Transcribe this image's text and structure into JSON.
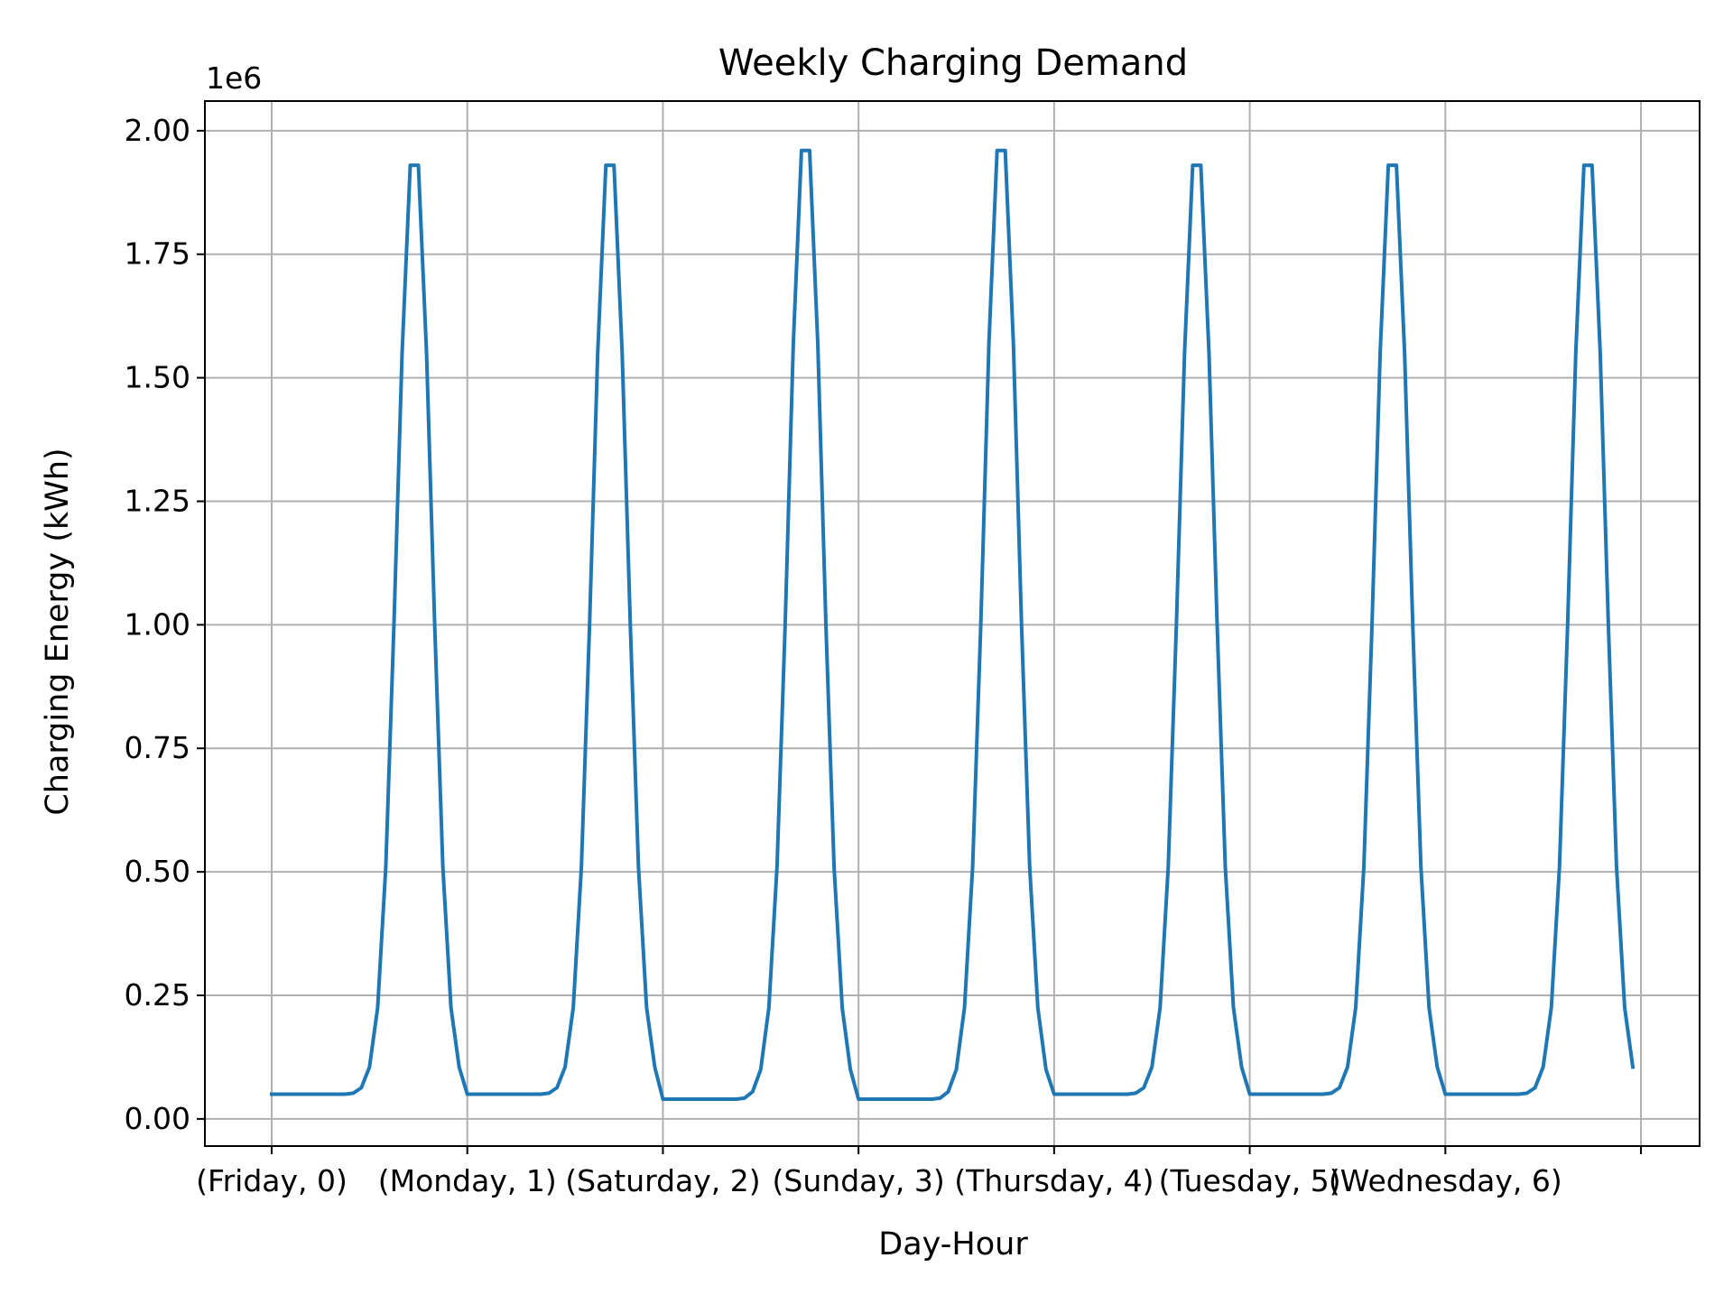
{
  "chart_data": {
    "type": "line",
    "title": "Weekly Charging Demand",
    "xlabel": "Day-Hour",
    "ylabel": "Charging Energy (kWh)",
    "y_offset_text": "1e6",
    "ylim": [
      -0.055,
      2.06
    ],
    "y_ticks": [
      0.0,
      0.25,
      0.5,
      0.75,
      1.0,
      1.25,
      1.5,
      1.75,
      2.0
    ],
    "y_tick_labels": [
      "0.00",
      "0.25",
      "0.50",
      "0.75",
      "1.00",
      "1.25",
      "1.50",
      "1.75",
      "2.00"
    ],
    "x_tick_labels": [
      "(Friday, 0)",
      "(Monday, 1)",
      "(Saturday, 2)",
      "(Sunday, 3)",
      "(Thursday, 4)",
      "(Tuesday, 5)",
      "(Wednesday, 6)"
    ],
    "grid": true,
    "legend": "none",
    "line_color": "#1f77b4",
    "series": [
      {
        "values": [
          0.05,
          0.05,
          0.05,
          0.05,
          0.05,
          0.05,
          0.05,
          0.05,
          0.05,
          0.05,
          0.052,
          0.063,
          0.105,
          0.225,
          0.51,
          1.0,
          1.55,
          1.93,
          1.93,
          1.55,
          1.0,
          0.51,
          0.225,
          0.105,
          0.05,
          0.05,
          0.05,
          0.05,
          0.05,
          0.05,
          0.05,
          0.05,
          0.05,
          0.05,
          0.052,
          0.063,
          0.105,
          0.225,
          0.51,
          1.0,
          1.55,
          1.93,
          1.93,
          1.55,
          1.0,
          0.51,
          0.225,
          0.105,
          0.04,
          0.04,
          0.04,
          0.04,
          0.04,
          0.04,
          0.04,
          0.04,
          0.04,
          0.04,
          0.042,
          0.055,
          0.1,
          0.225,
          0.51,
          1.0,
          1.57,
          1.96,
          1.96,
          1.57,
          1.0,
          0.51,
          0.225,
          0.1,
          0.04,
          0.04,
          0.04,
          0.04,
          0.04,
          0.04,
          0.04,
          0.04,
          0.04,
          0.04,
          0.042,
          0.055,
          0.1,
          0.225,
          0.51,
          1.0,
          1.57,
          1.96,
          1.96,
          1.57,
          1.0,
          0.51,
          0.225,
          0.1,
          0.05,
          0.05,
          0.05,
          0.05,
          0.05,
          0.05,
          0.05,
          0.05,
          0.05,
          0.05,
          0.052,
          0.063,
          0.105,
          0.225,
          0.51,
          1.0,
          1.55,
          1.93,
          1.93,
          1.55,
          1.0,
          0.51,
          0.225,
          0.105,
          0.05,
          0.05,
          0.05,
          0.05,
          0.05,
          0.05,
          0.05,
          0.05,
          0.05,
          0.05,
          0.052,
          0.063,
          0.105,
          0.225,
          0.51,
          1.0,
          1.55,
          1.93,
          1.93,
          1.55,
          1.0,
          0.51,
          0.225,
          0.105,
          0.05,
          0.05,
          0.05,
          0.05,
          0.05,
          0.05,
          0.05,
          0.05,
          0.05,
          0.05,
          0.052,
          0.063,
          0.105,
          0.225,
          0.51,
          1.0,
          1.55,
          1.93,
          1.93,
          1.55,
          1.0,
          0.51,
          0.225,
          0.105
        ]
      }
    ]
  }
}
